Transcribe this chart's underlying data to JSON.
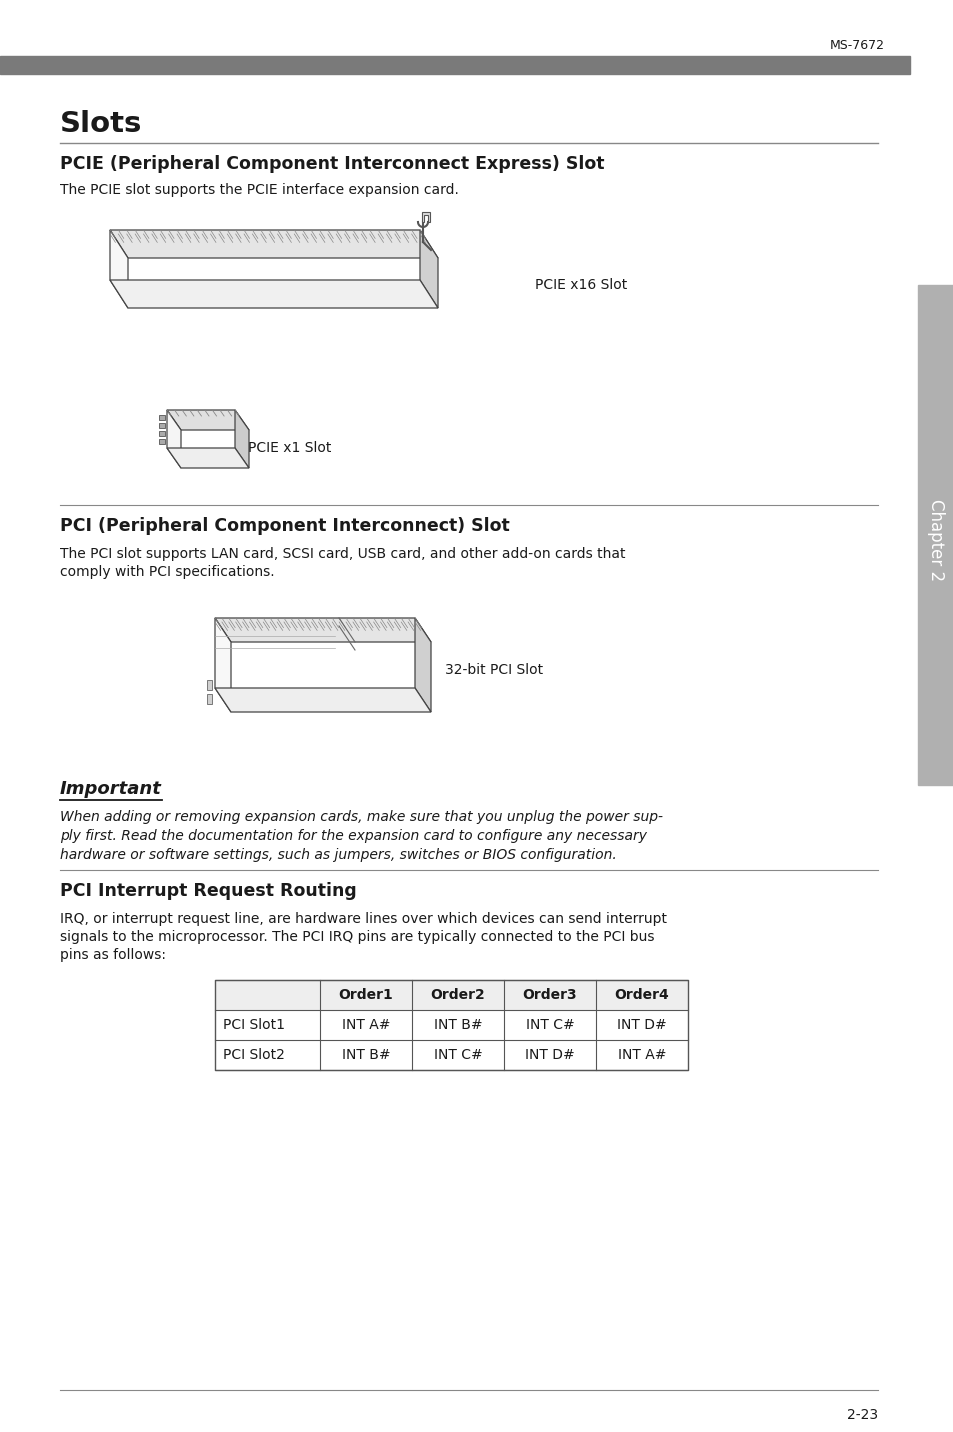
{
  "page_bg": "#ffffff",
  "header_bar_color": "#7a7a7a",
  "header_text": "MS-7672",
  "page_number": "2-23",
  "sidebar_color": "#b0b0b0",
  "title_slots": "Slots",
  "section1_title": "PCIE (Peripheral Component Interconnect Express) Slot",
  "section1_body": "The PCIE slot supports the PCIE interface expansion card.",
  "label_pcie_x16": "PCIE x16 Slot",
  "label_pcie_x1": "PCIE x1 Slot",
  "section2_title": "PCI (Peripheral Component Interconnect) Slot",
  "section2_body_line1": "The PCI slot supports LAN card, SCSI card, USB card, and other add-on cards that",
  "section2_body_line2": "comply with PCI specifications.",
  "label_pci_32bit": "32-bit PCI Slot",
  "important_title": "Important",
  "important_body_line1": "When adding or removing expansion cards, make sure that you unplug the power sup-",
  "important_body_line2": "ply first. Read the documentation for the expansion card to configure any necessary",
  "important_body_line3": "hardware or software settings, such as jumpers, switches or BIOS configuration.",
  "section3_title": "PCI Interrupt Request Routing",
  "section3_body_line1": "IRQ, or interrupt request line, are hardware lines over which devices can send interrupt",
  "section3_body_line2": "signals to the microprocessor. The PCI IRQ pins are typically connected to the PCI bus",
  "section3_body_line3": "pins as follows:",
  "table_headers": [
    "",
    "Order1",
    "Order2",
    "Order3",
    "Order4"
  ],
  "table_rows": [
    [
      "PCI Slot1",
      "INT A#",
      "INT B#",
      "INT C#",
      "INT D#"
    ],
    [
      "PCI Slot2",
      "INT B#",
      "INT C#",
      "INT D#",
      "INT A#"
    ]
  ],
  "chapter_label": "Chapter 2",
  "line_color": "#888888",
  "text_color": "#1a1a1a",
  "title_color": "#1a1a1a",
  "dark_line_color": "#444444"
}
